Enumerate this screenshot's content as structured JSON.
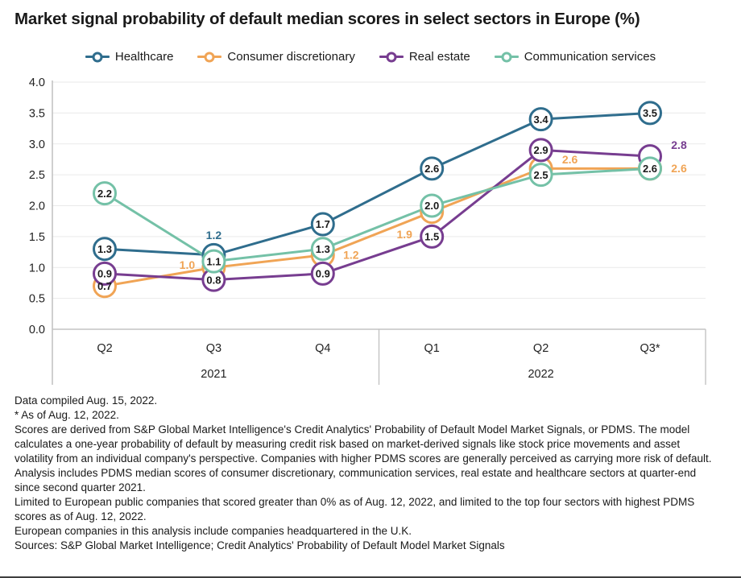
{
  "title": "Market signal probability of default median scores in select sectors in Europe (%)",
  "chart_data": {
    "type": "line",
    "x_categories": [
      "Q2",
      "Q3",
      "Q4",
      "Q1",
      "Q2",
      "Q3*"
    ],
    "year_groups": [
      {
        "label": "2021",
        "from": 0,
        "to": 2
      },
      {
        "label": "2022",
        "from": 3,
        "to": 5
      }
    ],
    "ylim": [
      0.0,
      4.0
    ],
    "ytick_labels": [
      "0.0",
      "0.5",
      "1.0",
      "1.5",
      "2.0",
      "2.5",
      "3.0",
      "3.5",
      "4.0"
    ],
    "grid": "horizontal",
    "legend_position": "top-center",
    "marker_style": "open-circle",
    "series": [
      {
        "name": "Healthcare",
        "color": "#2F6D8D",
        "values": [
          1.3,
          1.2,
          1.7,
          2.6,
          3.4,
          3.5
        ],
        "point_labels": [
          {
            "text": "1.3",
            "pos": "in"
          },
          {
            "text": "1.2",
            "pos": "above"
          },
          {
            "text": "1.7",
            "pos": "in"
          },
          {
            "text": "2.6",
            "pos": "in"
          },
          {
            "text": "3.4",
            "pos": "in"
          },
          {
            "text": "3.5",
            "pos": "in"
          }
        ]
      },
      {
        "name": "Consumer discretionary",
        "color": "#F0A455",
        "values": [
          0.7,
          1.0,
          1.2,
          1.9,
          2.6,
          2.6
        ],
        "point_labels": [
          {
            "text": "0.7",
            "pos": "in"
          },
          {
            "text": "1.0",
            "pos": "out",
            "dx": -33,
            "dy": -3
          },
          {
            "text": "1.2",
            "pos": "out",
            "dx": 35,
            "dy": 0
          },
          {
            "text": "1.9",
            "pos": "out",
            "dx": -34,
            "dy": 28
          },
          {
            "text": "2.6",
            "pos": "out",
            "dx": 36,
            "dy": -11
          },
          {
            "text": "2.6",
            "pos": "out",
            "dx": 36,
            "dy": 0
          }
        ]
      },
      {
        "name": "Real estate",
        "color": "#773D90",
        "values": [
          0.9,
          0.8,
          0.9,
          1.5,
          2.9,
          2.8
        ],
        "point_labels": [
          {
            "text": "0.9",
            "pos": "in"
          },
          {
            "text": "0.8",
            "pos": "in"
          },
          {
            "text": "0.9",
            "pos": "in"
          },
          {
            "text": "1.5",
            "pos": "in"
          },
          {
            "text": "2.9",
            "pos": "in"
          },
          {
            "text": "2.8",
            "pos": "out",
            "dx": 36,
            "dy": -14
          }
        ]
      },
      {
        "name": "Communication services",
        "color": "#74C1A7",
        "values": [
          2.2,
          1.1,
          1.3,
          2.0,
          2.5,
          2.6
        ],
        "point_labels": [
          {
            "text": "2.2",
            "pos": "in"
          },
          {
            "text": "1.1",
            "pos": "in"
          },
          {
            "text": "1.3",
            "pos": "in"
          },
          {
            "text": "2.0",
            "pos": "in"
          },
          {
            "text": "2.5",
            "pos": "in"
          },
          {
            "text": "2.6",
            "pos": "in"
          }
        ]
      }
    ]
  },
  "colors": {
    "grid_line": "#EAEAEA",
    "axis_line": "#C3C3C3",
    "text_dark": "#1a1a1a",
    "bottom_rule": "#3f3f3f"
  },
  "footnotes": [
    "Data compiled Aug. 15, 2022.",
    "* As of Aug. 12, 2022.",
    "Scores are derived from S&P Global Market Intelligence's Credit Analytics' Probability of Default Model Market Signals, or PDMS. The model calculates a one-year probability of default by measuring credit risk  based on market-derived signals like stock price movements and asset volatility from an individual company's perspective. Companies with higher PDMS scores are generally perceived as carrying more risk of default.",
    "Analysis includes PDMS median scores of consumer discretionary, communication services, real estate and healthcare sectors at quarter-end since second quarter 2021.",
    "Limited to European public companies that scored greater than 0% as of Aug. 12, 2022, and limited to the top four sectors with highest PDMS scores as of Aug. 12, 2022.",
    "European companies in this analysis include companies headquartered in the U.K.",
    "Sources: S&P Global Market Intelligence; Credit Analytics' Probability of Default Model Market Signals"
  ]
}
